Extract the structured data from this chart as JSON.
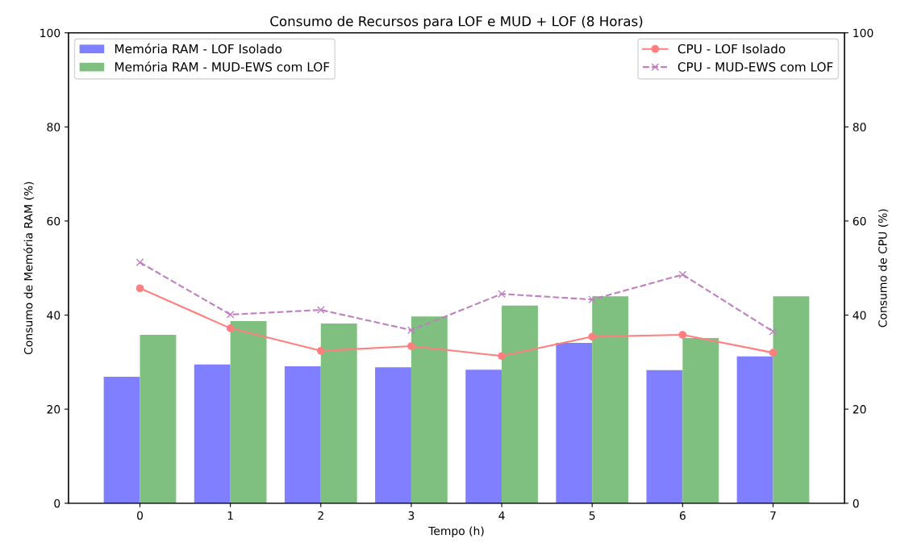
{
  "chart_data": {
    "type": "bar",
    "title": "Consumo de Recursos para LOF e MUD + LOF (8 Horas)",
    "xlabel": "Tempo (h)",
    "ylabel": "Consumo de Memória RAM (%)",
    "y2label": "Consumo de CPU (%)",
    "categories": [
      "0",
      "1",
      "2",
      "3",
      "4",
      "5",
      "6",
      "7"
    ],
    "series": [
      {
        "name": "Memória RAM - LOF Isolado",
        "color": "#7f7fff",
        "values": [
          26.9,
          29.5,
          29.1,
          28.9,
          28.4,
          34.1,
          28.3,
          31.2
        ]
      },
      {
        "name": "Memória RAM - MUD-EWS com LOF",
        "color": "#7fbf7f",
        "values": [
          35.8,
          38.7,
          38.2,
          39.7,
          42.0,
          44.0,
          35.1,
          44.0
        ]
      },
      {
        "name": "CPU - LOF Isolado",
        "type": "line",
        "axis": "y2",
        "color": "#ff7f7f",
        "marker": "circle",
        "line_style": "solid",
        "values": [
          45.7,
          37.2,
          32.4,
          33.4,
          31.3,
          35.4,
          35.8,
          32.0
        ]
      },
      {
        "name": "CPU - MUD-EWS com LOF",
        "type": "line",
        "axis": "y2",
        "color": "#bf7fbf",
        "marker": "cross",
        "line_style": "dashed",
        "values": [
          51.2,
          40.1,
          41.1,
          36.8,
          44.5,
          43.3,
          48.6,
          36.5
        ]
      }
    ],
    "legend": "top",
    "ylim": [
      0,
      100
    ],
    "yticks": [
      0,
      20,
      40,
      60,
      80,
      100
    ],
    "y2lim": [
      0,
      100
    ],
    "y2ticks": [
      0,
      20,
      40,
      60,
      80,
      100
    ],
    "grid": false
  }
}
